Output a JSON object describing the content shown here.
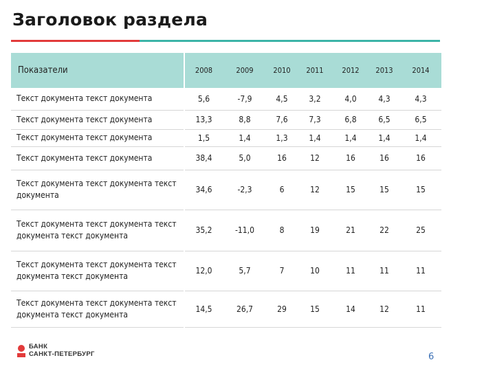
{
  "page": {
    "title": "Заголовок раздела",
    "page_number": "6"
  },
  "logo": {
    "line1": "БАНК",
    "line2": "САНКТ-ПЕТЕРБУРГ"
  },
  "colors": {
    "accent_red": "#e23b3b",
    "accent_teal": "#3cb4a8",
    "header_fill": "#a9dcd6"
  },
  "table": {
    "header": [
      "Показатели",
      "2008",
      "2009",
      "2010",
      "2011",
      "2012",
      "2013",
      "2014"
    ],
    "rows": [
      {
        "label": [
          "Текст документа текст документа"
        ],
        "values": [
          "5,6",
          "-7,9",
          "4,5",
          "3,2",
          "4,0",
          "4,3",
          "4,3"
        ]
      },
      {
        "label": [
          "Текст документа текст документа"
        ],
        "values": [
          "13,3",
          "8,8",
          "7,6",
          "7,3",
          "6,8",
          "6,5",
          "6,5"
        ]
      },
      {
        "label": [
          "Текст документа текст документа"
        ],
        "values": [
          "1,5",
          "1,4",
          "1,3",
          "1,4",
          "1,4",
          "1,4",
          "1,4"
        ]
      },
      {
        "label": [
          "Текст документа текст документа"
        ],
        "values": [
          "38,4",
          "5,0",
          "16",
          "12",
          "16",
          "16",
          "16"
        ]
      },
      {
        "label": [
          "Текст документа текст документа текст",
          "документа"
        ],
        "values": [
          "34,6",
          "-2,3",
          "6",
          "12",
          "15",
          "15",
          "15"
        ]
      },
      {
        "label": [
          "Текст документа текст документа текст",
          "документа текст документа"
        ],
        "values": [
          "35,2",
          "-11,0",
          "8",
          "19",
          "21",
          "22",
          "25"
        ]
      },
      {
        "label": [
          "Текст документа текст документа текст",
          "документа текст документа"
        ],
        "values": [
          "12,0",
          "5,7",
          "7",
          "10",
          "11",
          "11",
          "11"
        ]
      },
      {
        "label": [
          "Текст документа текст документа текст",
          "документа текст документа"
        ],
        "values": [
          "14,5",
          "26,7",
          "29",
          "15",
          "14",
          "12",
          "11"
        ]
      }
    ]
  }
}
